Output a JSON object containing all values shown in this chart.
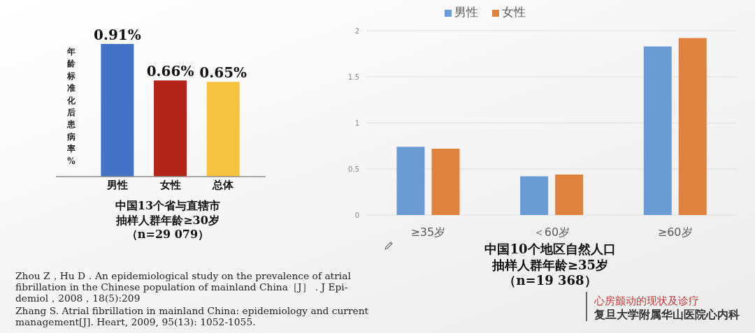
{
  "chart_data": [
    {
      "type": "bar",
      "categories": [
        "男性",
        "女性",
        "总体"
      ],
      "values": [
        0.91,
        0.66,
        0.65
      ],
      "colors": [
        "#4472c4",
        "#b22418",
        "#f5c242"
      ],
      "value_labels": [
        "0.91%",
        "0.66%",
        "0.65%"
      ],
      "ylabel": "年龄标准化后患病率%",
      "xlabel": "中国13个省与直辖市抽样人群年龄≥30岁（n=29 079）",
      "tick_labels": "x",
      "annotations": [
        "Zhou Z，Hu D．An epidemiological study on the prevalence of atrial\nfibrillation in the Chinese population of mainland China［J］．J Epi-\ndemiol，2008，18(5):209",
        "Zhang S. Atrial fibrillation in mainland China: epidemiology and current\nmanagement[J]. Heart, 2009, 95(13): 1052-1055."
      ]
    },
    {
      "type": "bar",
      "categories": [
        "≥35岁",
        "＜60岁",
        "≥60岁"
      ],
      "series": [
        {
          "name": "男性",
          "color": "#6a9bd3",
          "values": [
            0.74,
            0.42,
            1.83
          ]
        },
        {
          "name": "女性",
          "color": "#e0823f",
          "values": [
            0.72,
            0.44,
            1.92
          ]
        }
      ],
      "ylim": [
        0,
        2
      ],
      "yticks": [
        0,
        0.5,
        1,
        1.5,
        2
      ],
      "grid": "y",
      "legend": "top",
      "xlabel": "中国10个地区自然人口抽样人群年龄≥35岁（n=19 368）",
      "annotations": [
        "心房颤动的现状及诊疗",
        "复旦大学附属华山医院心内科"
      ]
    }
  ]
}
